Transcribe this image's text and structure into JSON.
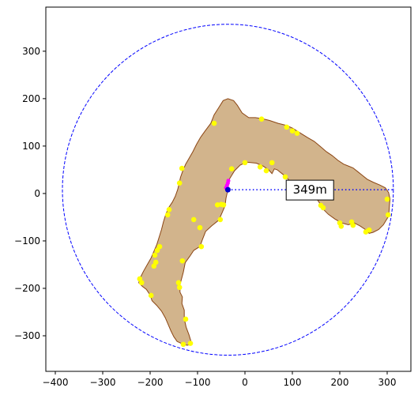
{
  "chart_data": {
    "type": "scatter",
    "title": "",
    "xlabel": "",
    "ylabel": "",
    "xlim": [
      -420,
      350
    ],
    "ylim": [
      -375,
      393
    ],
    "xticks": [
      -400,
      -300,
      -200,
      -100,
      0,
      100,
      200,
      300
    ],
    "yticks": [
      -300,
      -200,
      -100,
      0,
      100,
      200,
      300
    ],
    "grid": false,
    "aspect": "equal",
    "colors": {
      "island_fill": "#d2b48c",
      "island_edge": "#8b4513",
      "circle": "#0000ff",
      "points": "#ffff00",
      "center": "#0000cd",
      "magenta": "#ff00ff"
    },
    "circle": {
      "center": [
        -36,
        8
      ],
      "radius": 349,
      "style": "dashed"
    },
    "center_point": [
      -36,
      8
    ],
    "radius_line": {
      "from": [
        -36,
        8
      ],
      "to": [
        313,
        8
      ],
      "style": "dotted"
    },
    "annotation": {
      "text": "349m",
      "at": [
        137,
        8
      ]
    },
    "magenta_points": [
      [
        -40,
        12
      ],
      [
        -38,
        17
      ],
      [
        -36,
        22
      ],
      [
        -35,
        27
      ]
    ],
    "island_outline": [
      [
        -143,
        -312
      ],
      [
        -130,
        -318
      ],
      [
        -122,
        -320
      ],
      [
        -112,
        -318
      ],
      [
        -118,
        -298
      ],
      [
        -124,
        -282
      ],
      [
        -128,
        -264
      ],
      [
        -128,
        -246
      ],
      [
        -133,
        -232
      ],
      [
        -132,
        -218
      ],
      [
        -137,
        -208
      ],
      [
        -137,
        -192
      ],
      [
        -130,
        -166
      ],
      [
        -126,
        -146
      ],
      [
        -116,
        -132
      ],
      [
        -108,
        -120
      ],
      [
        -95,
        -112
      ],
      [
        -90,
        -98
      ],
      [
        -83,
        -80
      ],
      [
        -70,
        -68
      ],
      [
        -55,
        -56
      ],
      [
        -48,
        -40
      ],
      [
        -42,
        -26
      ],
      [
        -40,
        -10
      ],
      [
        -36,
        8
      ],
      [
        -33,
        30
      ],
      [
        -22,
        48
      ],
      [
        -10,
        60
      ],
      [
        4,
        66
      ],
      [
        24,
        64
      ],
      [
        38,
        58
      ],
      [
        50,
        50
      ],
      [
        57,
        42
      ],
      [
        62,
        52
      ],
      [
        68,
        50
      ],
      [
        78,
        42
      ],
      [
        86,
        36
      ],
      [
        93,
        28
      ],
      [
        98,
        16
      ],
      [
        106,
        6
      ],
      [
        118,
        2
      ],
      [
        132,
        0
      ],
      [
        142,
        -4
      ],
      [
        152,
        -12
      ],
      [
        160,
        -24
      ],
      [
        166,
        -34
      ],
      [
        176,
        -44
      ],
      [
        190,
        -54
      ],
      [
        204,
        -62
      ],
      [
        218,
        -66
      ],
      [
        230,
        -62
      ],
      [
        242,
        -68
      ],
      [
        254,
        -76
      ],
      [
        262,
        -84
      ],
      [
        270,
        -82
      ],
      [
        282,
        -76
      ],
      [
        292,
        -66
      ],
      [
        298,
        -56
      ],
      [
        303,
        -48
      ],
      [
        304,
        -36
      ],
      [
        305,
        -22
      ],
      [
        306,
        -12
      ],
      [
        303,
        2
      ],
      [
        296,
        12
      ],
      [
        284,
        18
      ],
      [
        270,
        24
      ],
      [
        258,
        30
      ],
      [
        248,
        38
      ],
      [
        238,
        46
      ],
      [
        228,
        54
      ],
      [
        218,
        58
      ],
      [
        208,
        62
      ],
      [
        196,
        70
      ],
      [
        184,
        80
      ],
      [
        172,
        88
      ],
      [
        158,
        100
      ],
      [
        146,
        110
      ],
      [
        132,
        118
      ],
      [
        116,
        128
      ],
      [
        100,
        138
      ],
      [
        86,
        144
      ],
      [
        70,
        148
      ],
      [
        52,
        154
      ],
      [
        36,
        158
      ],
      [
        22,
        160
      ],
      [
        8,
        160
      ],
      [
        -6,
        170
      ],
      [
        -16,
        186
      ],
      [
        -24,
        196
      ],
      [
        -36,
        200
      ],
      [
        -46,
        196
      ],
      [
        -56,
        180
      ],
      [
        -65,
        166
      ],
      [
        -72,
        148
      ],
      [
        -84,
        132
      ],
      [
        -94,
        118
      ],
      [
        -102,
        104
      ],
      [
        -110,
        88
      ],
      [
        -118,
        74
      ],
      [
        -125,
        62
      ],
      [
        -131,
        48
      ],
      [
        -136,
        34
      ],
      [
        -139,
        20
      ],
      [
        -142,
        8
      ],
      [
        -147,
        -6
      ],
      [
        -153,
        -18
      ],
      [
        -161,
        -30
      ],
      [
        -167,
        -44
      ],
      [
        -172,
        -60
      ],
      [
        -176,
        -76
      ],
      [
        -181,
        -92
      ],
      [
        -186,
        -108
      ],
      [
        -192,
        -122
      ],
      [
        -198,
        -136
      ],
      [
        -206,
        -150
      ],
      [
        -214,
        -164
      ],
      [
        -221,
        -178
      ],
      [
        -224,
        -188
      ],
      [
        -216,
        -196
      ],
      [
        -208,
        -202
      ],
      [
        -200,
        -214
      ],
      [
        -196,
        -226
      ],
      [
        -186,
        -236
      ],
      [
        -176,
        -248
      ],
      [
        -168,
        -262
      ],
      [
        -162,
        -276
      ],
      [
        -156,
        -290
      ],
      [
        -150,
        -302
      ]
    ],
    "points": [
      [
        -65,
        148
      ],
      [
        35,
        157
      ],
      [
        88,
        140
      ],
      [
        100,
        132
      ],
      [
        110,
        127
      ],
      [
        -133,
        53
      ],
      [
        -28,
        52
      ],
      [
        0,
        65
      ],
      [
        32,
        56
      ],
      [
        45,
        48
      ],
      [
        57,
        65
      ],
      [
        85,
        35
      ],
      [
        -138,
        22
      ],
      [
        -58,
        -24
      ],
      [
        -50,
        -23
      ],
      [
        -45,
        -24
      ],
      [
        -160,
        -34
      ],
      [
        -163,
        -45
      ],
      [
        -108,
        -55
      ],
      [
        -52,
        -55
      ],
      [
        -95,
        -72
      ],
      [
        -92,
        -112
      ],
      [
        -180,
        -112
      ],
      [
        -185,
        -120
      ],
      [
        -190,
        -130
      ],
      [
        -132,
        -142
      ],
      [
        -188,
        -145
      ],
      [
        -192,
        -153
      ],
      [
        -222,
        -180
      ],
      [
        -218,
        -188
      ],
      [
        -140,
        -188
      ],
      [
        -138,
        -198
      ],
      [
        -198,
        -215
      ],
      [
        -125,
        -265
      ],
      [
        -130,
        -318
      ],
      [
        -115,
        -316
      ],
      [
        160,
        -25
      ],
      [
        165,
        -30
      ],
      [
        200,
        -62
      ],
      [
        203,
        -69
      ],
      [
        225,
        -60
      ],
      [
        228,
        -67
      ],
      [
        255,
        -81
      ],
      [
        262,
        -77
      ],
      [
        300,
        -12
      ],
      [
        302,
        -45
      ]
    ]
  }
}
